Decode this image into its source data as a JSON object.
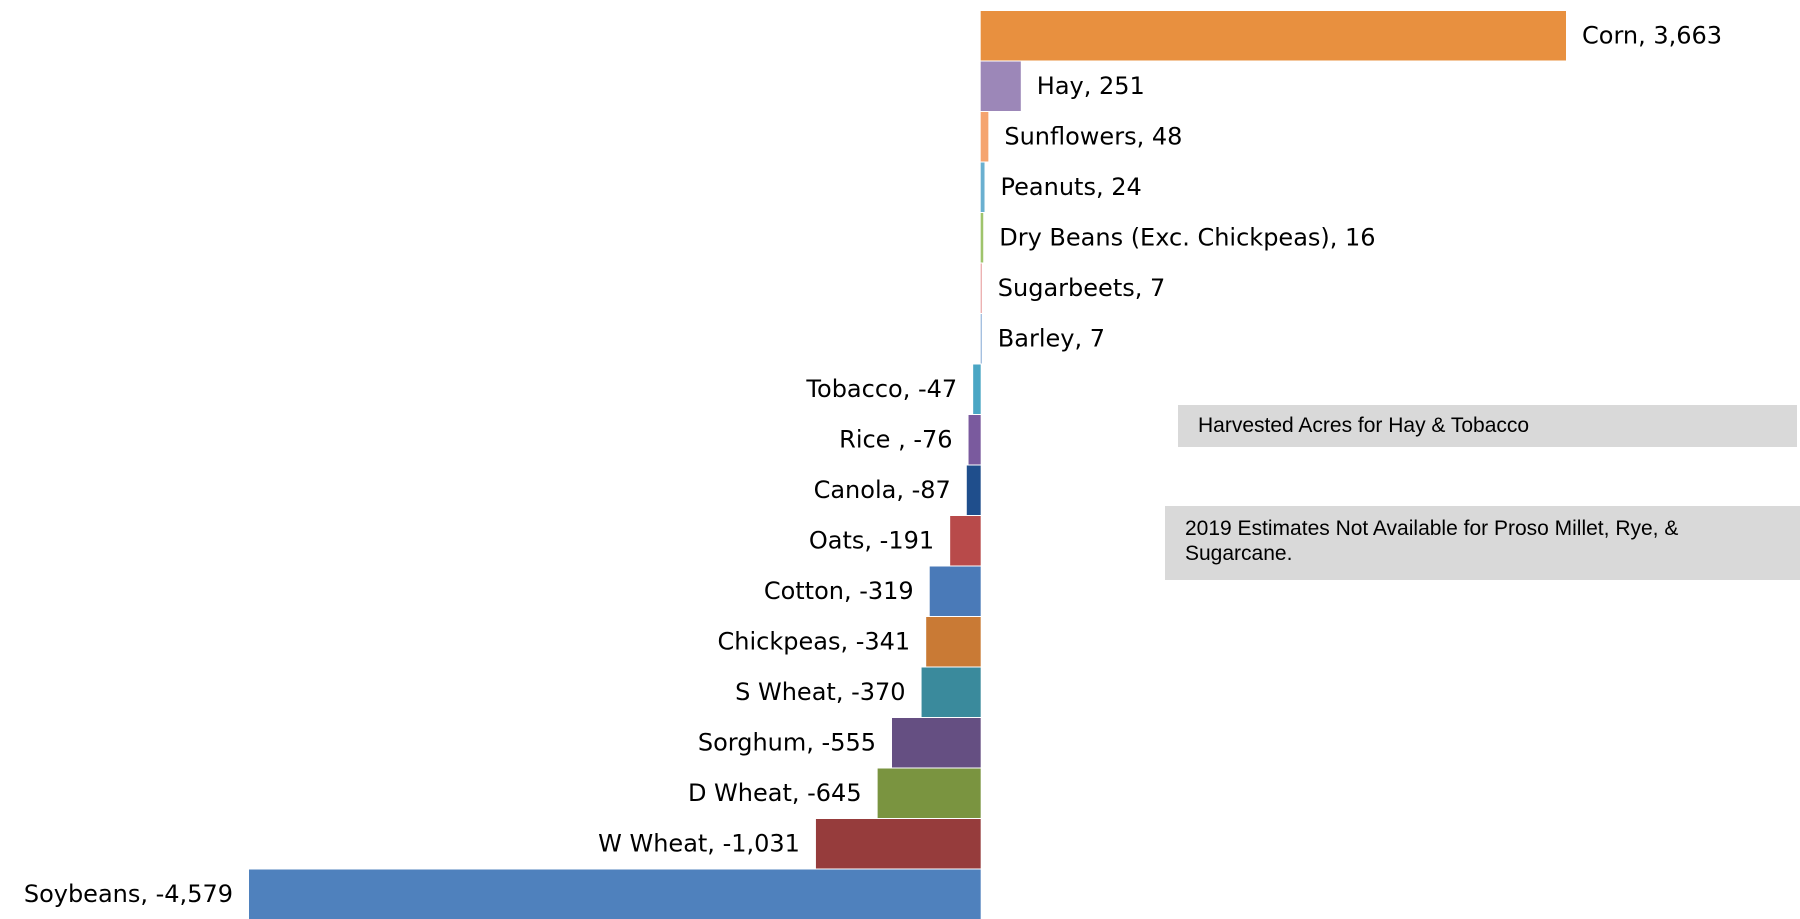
{
  "chart_data": {
    "type": "bar",
    "orientation": "horizontal",
    "values": [
      3663,
      251,
      48,
      24,
      16,
      7,
      7,
      -47,
      -76,
      -87,
      -191,
      -319,
      -341,
      -370,
      -555,
      -645,
      -1031,
      -4579
    ],
    "value_labels": [
      "Corn, 3,663",
      "Hay, 251",
      "Sunflowers, 48",
      "Peanuts, 24",
      "Dry Beans (Exc. Chickpeas), 16",
      "Sugarbeets, 7",
      "Barley, 7",
      "Tobacco, -47",
      "Rice , -76",
      "Canola, -87",
      "Oats, -191",
      "Cotton, -319",
      "Chickpeas, -341",
      "S Wheat, -370",
      "Sorghum, -555",
      "D Wheat, -645",
      "W Wheat, -1,031",
      "Soybeans, -4,579"
    ],
    "colors": [
      "#e8903f",
      "#9c87b8",
      "#f5a470",
      "#6ab0d0",
      "#9fc46c",
      "#e8a0a0",
      "#8fb0d8",
      "#4aa6c4",
      "#7a5a9e",
      "#1f4e8c",
      "#b84a4a",
      "#4a7ab8",
      "#c97a35",
      "#3a8a9c",
      "#654f82",
      "#7a9440",
      "#963c3c",
      "#4f81bd"
    ],
    "annotations": [
      "Harvested Acres for Hay & Tobacco",
      "2019 Estimates Not Available for Proso Millet, Rye, & Sugarcane."
    ]
  }
}
